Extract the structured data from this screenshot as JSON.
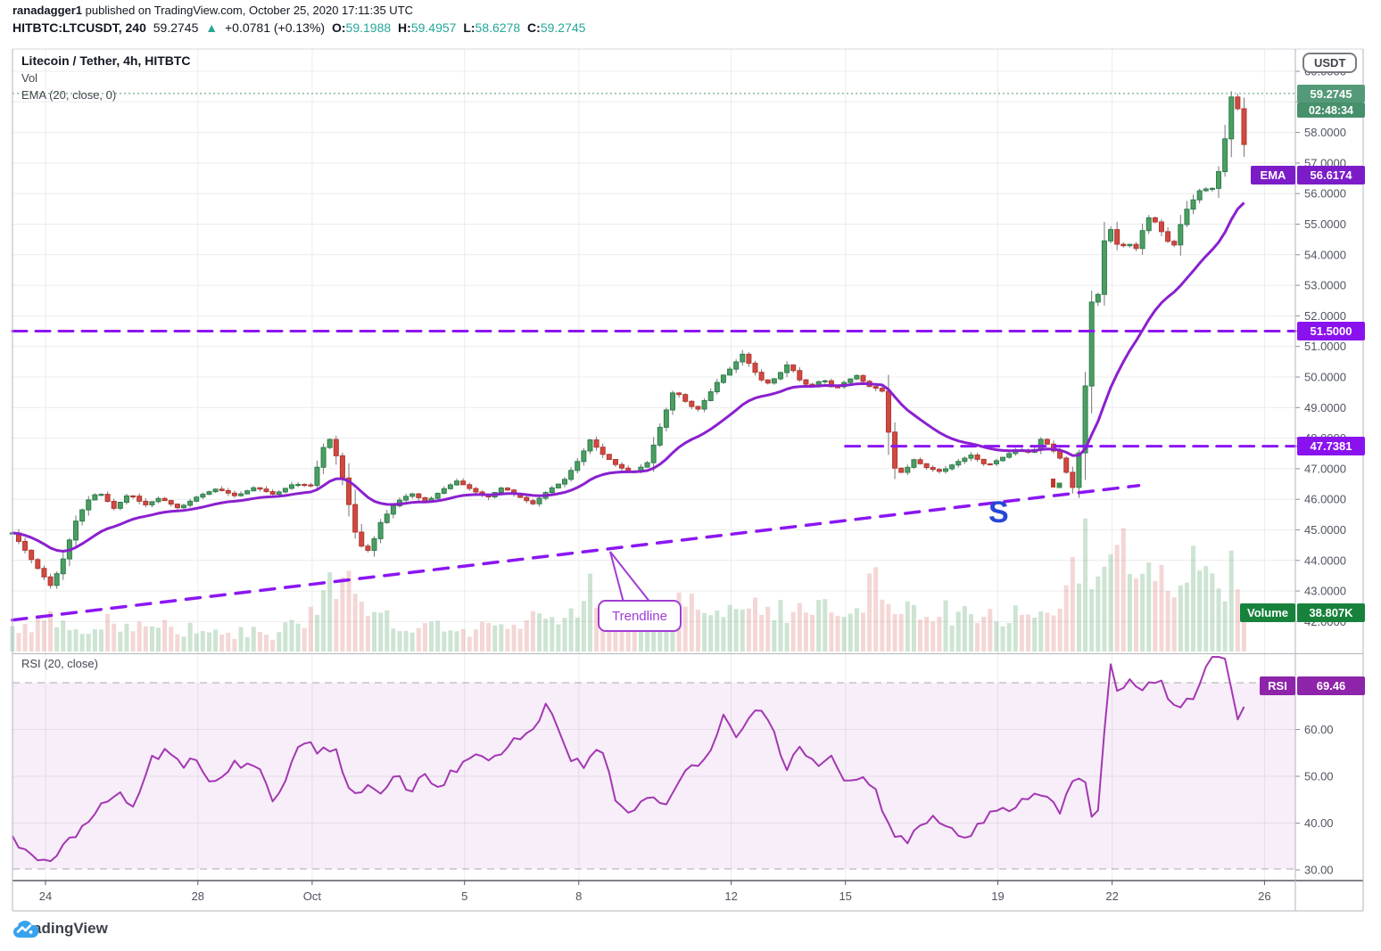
{
  "header": {
    "user": "ranadagger1",
    "published": " published on TradingView.com, October 25, 2020 17:11:35 UTC",
    "symbol": "HITBTC:LTCUSDT, 240",
    "last_price": "59.2745",
    "change_arrow": "▲",
    "change": "+0.0781 (+0.13%)",
    "o_label": "O:",
    "o": "59.1988",
    "h_label": "H:",
    "h": "59.4957",
    "l_label": "L:",
    "l": "58.6278",
    "c_label": "C:",
    "c": "59.2745"
  },
  "chart": {
    "legend": {
      "title": "Litecoin / Tether, 4h, HITBTC",
      "vol": "Vol",
      "ema": "EMA (20, close, 0)"
    },
    "rsi_legend": "RSI (20, close)",
    "price_axis": {
      "currency_button": "USDT",
      "tick_labels": [
        "60.0000",
        "59.0000",
        "58.0000",
        "57.0000",
        "56.0000",
        "55.0000",
        "54.0000",
        "53.0000",
        "52.0000",
        "51.0000",
        "50.0000",
        "49.0000",
        "48.0000",
        "47.0000",
        "46.0000",
        "45.0000",
        "44.0000",
        "43.0000",
        "42.0000"
      ],
      "last_price_badge": "59.2745",
      "countdown": "02:48:34",
      "ema_label": "EMA",
      "ema_value": "56.6174",
      "level1_badge": "51.5000",
      "level2_badge": "47.7381",
      "volume_label": "Volume",
      "volume_value": "38.807K",
      "rsi_label": "RSI",
      "rsi_value": "69.46"
    },
    "rsi_axis": {
      "tick_labels": [
        "60.00",
        "50.00",
        "40.00",
        "30.00"
      ]
    },
    "time_axis": {
      "ticks": [
        {
          "label": "24",
          "d": 0
        },
        {
          "label": "28",
          "d": 4
        },
        {
          "label": "Oct",
          "d": 7
        },
        {
          "label": "5",
          "d": 11
        },
        {
          "label": "8",
          "d": 14
        },
        {
          "label": "12",
          "d": 18
        },
        {
          "label": "15",
          "d": 21
        },
        {
          "label": "19",
          "d": 25
        },
        {
          "label": "22",
          "d": 28
        },
        {
          "label": "26",
          "d": 32
        }
      ]
    }
  },
  "annotations": {
    "trendline_label": "Trendline",
    "s_label": "S"
  },
  "footer": {
    "brand": "TradingView"
  },
  "colors": {
    "candle_up": "#4c9e61",
    "candle_up_border": "#2e7d4e",
    "candle_down": "#cf4a41",
    "candle_down_border": "#b23730",
    "wick": "#757575",
    "ema_line": "#8a20cf",
    "level_dash": "#8b16f2",
    "close_dotted": "#4c9e61",
    "rsi_line": "#a437b2",
    "rsi_band": "#9c27b0",
    "vol_up": "rgba(76,158,97,0.28)",
    "vol_down": "rgba(207,74,65,0.22)",
    "badge_price": "#559a78",
    "badge_countdown": "#47906c",
    "badge_ema": "#7c1cc9",
    "badge_level": "#8a12ef",
    "badge_volume": "#17823c",
    "badge_rsi": "#8e24aa",
    "header_teal": "#26a69a",
    "grid": "#ececec",
    "axis_text": "#4f5461",
    "logo_blue": "#37a3ee"
  },
  "chart_data": {
    "type": "candlestick+volume+rsi",
    "symbol": "HITBTC:LTCUSDT",
    "interval": "4h",
    "price_range_shown": [
      42,
      60
    ],
    "rsi_range_shown": [
      30,
      70
    ],
    "ema_period": 20,
    "rsi_period": 20,
    "last_bar": {
      "open": 59.1988,
      "high": 59.4957,
      "low": 58.6278,
      "close": 59.2745
    },
    "ema_last": 56.6174,
    "rsi_last": 69.46,
    "volume_last": "38.807K",
    "levels": [
      51.5,
      47.7381
    ],
    "level2_start_d": 21.0,
    "trendline": {
      "from_d": -0.87,
      "from_price": 42.05,
      "to_d": 28.7,
      "to_price": 46.45
    },
    "bars_per_day": 6,
    "d_start": -0.87,
    "d_end": 31.55,
    "close_keypoints": [
      [
        -0.87,
        44.9
      ],
      [
        -0.6,
        44.45
      ],
      [
        -0.3,
        43.9
      ],
      [
        0.15,
        43.15
      ],
      [
        0.45,
        44.0
      ],
      [
        0.8,
        45.3
      ],
      [
        1.1,
        45.95
      ],
      [
        1.4,
        46.25
      ],
      [
        1.8,
        45.7
      ],
      [
        2.2,
        46.2
      ],
      [
        2.6,
        45.8
      ],
      [
        3.0,
        46.05
      ],
      [
        3.5,
        45.7
      ],
      [
        4.0,
        46.1
      ],
      [
        4.5,
        46.35
      ],
      [
        5.0,
        46.1
      ],
      [
        5.5,
        46.4
      ],
      [
        6.0,
        46.15
      ],
      [
        6.5,
        46.5
      ],
      [
        7.0,
        46.45
      ],
      [
        7.25,
        47.6
      ],
      [
        7.45,
        48.0
      ],
      [
        7.7,
        47.2
      ],
      [
        7.95,
        45.9
      ],
      [
        8.2,
        44.55
      ],
      [
        8.5,
        44.3
      ],
      [
        8.8,
        45.25
      ],
      [
        9.2,
        45.9
      ],
      [
        9.6,
        46.2
      ],
      [
        10.0,
        45.9
      ],
      [
        10.4,
        46.3
      ],
      [
        10.8,
        46.6
      ],
      [
        11.2,
        46.3
      ],
      [
        11.6,
        46.05
      ],
      [
        12.0,
        46.4
      ],
      [
        12.4,
        46.1
      ],
      [
        12.8,
        45.85
      ],
      [
        13.2,
        46.3
      ],
      [
        13.6,
        46.6
      ],
      [
        14.0,
        47.3
      ],
      [
        14.3,
        47.95
      ],
      [
        14.6,
        47.5
      ],
      [
        15.0,
        47.1
      ],
      [
        15.4,
        46.85
      ],
      [
        15.8,
        47.2
      ],
      [
        16.2,
        48.6
      ],
      [
        16.5,
        49.6
      ],
      [
        16.8,
        49.2
      ],
      [
        17.1,
        48.9
      ],
      [
        17.4,
        49.4
      ],
      [
        17.7,
        49.95
      ],
      [
        18.0,
        50.3
      ],
      [
        18.3,
        50.75
      ],
      [
        18.6,
        50.2
      ],
      [
        18.9,
        49.75
      ],
      [
        19.2,
        50.0
      ],
      [
        19.5,
        50.45
      ],
      [
        19.8,
        49.9
      ],
      [
        20.1,
        49.65
      ],
      [
        20.4,
        49.95
      ],
      [
        20.7,
        49.6
      ],
      [
        21.0,
        49.85
      ],
      [
        21.3,
        50.05
      ],
      [
        21.6,
        49.7
      ],
      [
        21.9,
        49.6
      ],
      [
        22.05,
        49.45
      ],
      [
        22.2,
        47.1
      ],
      [
        22.5,
        46.85
      ],
      [
        22.8,
        47.3
      ],
      [
        23.1,
        47.05
      ],
      [
        23.5,
        46.9
      ],
      [
        23.9,
        47.2
      ],
      [
        24.3,
        47.45
      ],
      [
        24.7,
        47.1
      ],
      [
        25.1,
        47.35
      ],
      [
        25.5,
        47.65
      ],
      [
        25.9,
        47.5
      ],
      [
        26.15,
        48.0
      ],
      [
        26.45,
        47.6
      ],
      [
        26.7,
        47.25
      ],
      [
        26.95,
        46.3
      ],
      [
        27.1,
        47.3
      ],
      [
        27.25,
        48.4
      ],
      [
        27.4,
        52.6
      ],
      [
        27.55,
        52.25
      ],
      [
        27.7,
        53.1
      ],
      [
        27.85,
        55.2
      ],
      [
        28.0,
        54.7
      ],
      [
        28.2,
        54.15
      ],
      [
        28.4,
        54.45
      ],
      [
        28.6,
        54.1
      ],
      [
        28.8,
        54.8
      ],
      [
        29.0,
        55.3
      ],
      [
        29.2,
        54.95
      ],
      [
        29.4,
        54.55
      ],
      [
        29.6,
        54.2
      ],
      [
        29.8,
        55.0
      ],
      [
        30.0,
        55.6
      ],
      [
        30.2,
        55.9
      ],
      [
        30.4,
        56.3
      ],
      [
        30.55,
        55.95
      ],
      [
        30.75,
        56.5
      ],
      [
        30.9,
        57.2
      ],
      [
        31.05,
        58.6
      ],
      [
        31.15,
        59.3
      ],
      [
        31.25,
        59.15
      ],
      [
        31.35,
        58.35
      ],
      [
        31.45,
        57.35
      ],
      [
        31.55,
        59.2745
      ]
    ],
    "rsi_keypoints": [
      [
        -0.9,
        37
      ],
      [
        -0.5,
        34
      ],
      [
        0.2,
        31.5
      ],
      [
        0.8,
        38
      ],
      [
        1.5,
        44
      ],
      [
        2.0,
        46
      ],
      [
        2.3,
        43.5
      ],
      [
        2.8,
        54
      ],
      [
        3.2,
        55.5
      ],
      [
        3.6,
        52.5
      ],
      [
        4.0,
        53.5
      ],
      [
        4.4,
        48.5
      ],
      [
        4.8,
        52
      ],
      [
        5.2,
        53
      ],
      [
        5.6,
        51
      ],
      [
        6.0,
        44.5
      ],
      [
        6.4,
        52
      ],
      [
        6.8,
        57.5
      ],
      [
        7.2,
        55
      ],
      [
        7.6,
        56
      ],
      [
        8.0,
        45.5
      ],
      [
        8.4,
        47.5
      ],
      [
        8.8,
        46.5
      ],
      [
        9.2,
        49.5
      ],
      [
        9.6,
        47.5
      ],
      [
        10.0,
        50
      ],
      [
        10.4,
        48
      ],
      [
        10.8,
        52
      ],
      [
        11.2,
        54.5
      ],
      [
        11.6,
        52.5
      ],
      [
        12.0,
        55.5
      ],
      [
        12.4,
        58
      ],
      [
        12.8,
        60
      ],
      [
        13.2,
        65.5
      ],
      [
        13.5,
        60
      ],
      [
        13.8,
        54
      ],
      [
        14.2,
        52.5
      ],
      [
        14.6,
        56.5
      ],
      [
        15.0,
        44
      ],
      [
        15.4,
        41.5
      ],
      [
        15.8,
        46
      ],
      [
        16.2,
        44
      ],
      [
        16.6,
        48.5
      ],
      [
        17.0,
        52
      ],
      [
        17.4,
        55
      ],
      [
        17.8,
        62.5
      ],
      [
        18.2,
        58
      ],
      [
        18.6,
        64
      ],
      [
        19.0,
        62
      ],
      [
        19.4,
        51
      ],
      [
        19.8,
        57
      ],
      [
        20.2,
        52.5
      ],
      [
        20.6,
        54.5
      ],
      [
        21.0,
        48.5
      ],
      [
        21.4,
        50.5
      ],
      [
        21.8,
        47
      ],
      [
        22.2,
        38.5
      ],
      [
        22.6,
        36.5
      ],
      [
        23.0,
        40
      ],
      [
        23.4,
        41
      ],
      [
        23.8,
        38
      ],
      [
        24.2,
        36.5
      ],
      [
        24.6,
        40
      ],
      [
        25.0,
        44
      ],
      [
        25.4,
        43
      ],
      [
        25.8,
        45
      ],
      [
        26.2,
        47
      ],
      [
        26.6,
        42.5
      ],
      [
        27.0,
        49
      ],
      [
        27.2,
        51.5
      ],
      [
        27.4,
        43.5
      ],
      [
        27.6,
        39.5
      ],
      [
        27.95,
        75
      ],
      [
        28.2,
        67
      ],
      [
        28.45,
        70.5
      ],
      [
        28.7,
        67.5
      ],
      [
        29.0,
        69.5
      ],
      [
        29.25,
        71
      ],
      [
        29.5,
        66
      ],
      [
        29.8,
        64.5
      ],
      [
        30.1,
        66.5
      ],
      [
        30.4,
        72
      ],
      [
        30.7,
        76
      ],
      [
        30.95,
        74.5
      ],
      [
        31.15,
        69
      ],
      [
        31.3,
        62
      ],
      [
        31.4,
        61.5
      ],
      [
        31.55,
        69.46
      ]
    ],
    "volume_envelope": [
      [
        -0.9,
        0.18
      ],
      [
        0.2,
        0.28
      ],
      [
        1,
        0.22
      ],
      [
        2,
        0.25
      ],
      [
        3,
        0.2
      ],
      [
        4,
        0.18
      ],
      [
        5,
        0.16
      ],
      [
        6,
        0.15
      ],
      [
        6.8,
        0.25
      ],
      [
        7.4,
        0.55
      ],
      [
        8,
        0.5
      ],
      [
        8.4,
        0.45
      ],
      [
        9,
        0.25
      ],
      [
        10,
        0.2
      ],
      [
        11,
        0.18
      ],
      [
        12,
        0.22
      ],
      [
        13,
        0.28
      ],
      [
        13.8,
        0.35
      ],
      [
        14.2,
        0.55
      ],
      [
        15,
        0.3
      ],
      [
        16,
        0.35
      ],
      [
        16.6,
        0.45
      ],
      [
        17.2,
        0.35
      ],
      [
        18,
        0.4
      ],
      [
        18.6,
        0.5
      ],
      [
        19.2,
        0.35
      ],
      [
        20,
        0.3
      ],
      [
        21,
        0.4
      ],
      [
        21.9,
        0.55
      ],
      [
        22.4,
        0.4
      ],
      [
        23,
        0.3
      ],
      [
        24,
        0.35
      ],
      [
        25,
        0.25
      ],
      [
        26,
        0.35
      ],
      [
        26.6,
        0.45
      ],
      [
        27,
        0.65
      ],
      [
        27.2,
        0.95
      ],
      [
        27.5,
        0.7
      ],
      [
        27.8,
        0.8
      ],
      [
        28.1,
        0.9
      ],
      [
        28.4,
        1.0
      ],
      [
        28.7,
        0.7
      ],
      [
        29,
        0.75
      ],
      [
        29.3,
        0.7
      ],
      [
        29.6,
        0.55
      ],
      [
        30,
        0.45
      ],
      [
        30.3,
        0.95
      ],
      [
        30.6,
        0.75
      ],
      [
        30.9,
        0.5
      ],
      [
        31.2,
        0.85
      ],
      [
        31.45,
        0.45
      ],
      [
        31.55,
        0.75
      ]
    ]
  }
}
